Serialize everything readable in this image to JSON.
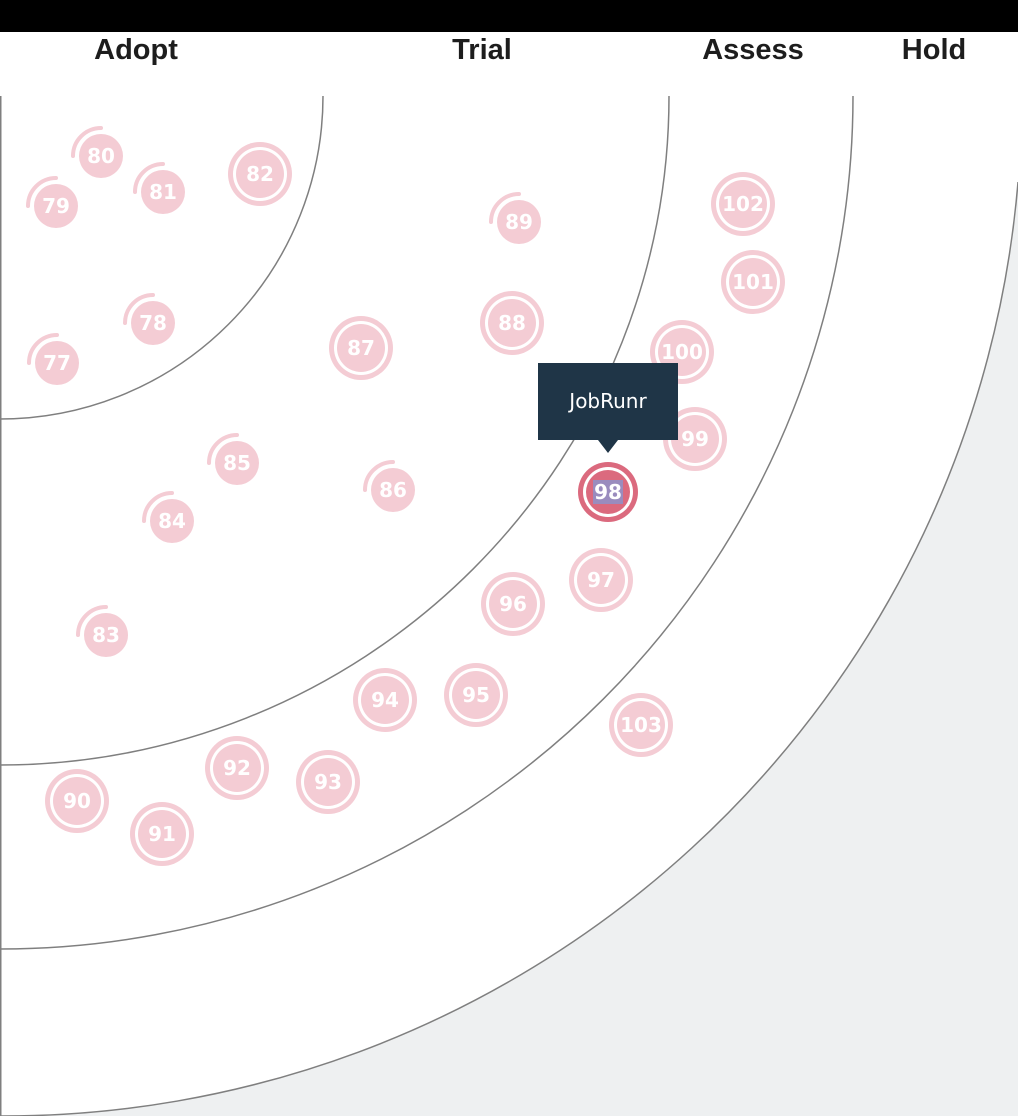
{
  "rings": [
    {
      "id": "adopt",
      "label": "Adopt"
    },
    {
      "id": "trial",
      "label": "Trial"
    },
    {
      "id": "assess",
      "label": "Assess"
    },
    {
      "id": "hold",
      "label": "Hold"
    }
  ],
  "tooltip": {
    "text": "JobRunr"
  },
  "colors": {
    "blip": "#f4ccd4",
    "blip_highlight": "#db6a7e",
    "blip_highlight_fill": "#9a8cbe",
    "tooltip_bg": "#1f3547",
    "ring_line": "#7f7f7f",
    "outside_bg": "#eef0f1"
  },
  "blips": [
    {
      "num": "77",
      "ring": "adopt",
      "style": "new"
    },
    {
      "num": "78",
      "ring": "adopt",
      "style": "new"
    },
    {
      "num": "79",
      "ring": "adopt",
      "style": "new"
    },
    {
      "num": "80",
      "ring": "adopt",
      "style": "new"
    },
    {
      "num": "81",
      "ring": "adopt",
      "style": "new"
    },
    {
      "num": "82",
      "ring": "adopt",
      "style": "unchanged"
    },
    {
      "num": "83",
      "ring": "trial",
      "style": "new"
    },
    {
      "num": "84",
      "ring": "trial",
      "style": "new"
    },
    {
      "num": "85",
      "ring": "trial",
      "style": "new"
    },
    {
      "num": "86",
      "ring": "trial",
      "style": "new"
    },
    {
      "num": "87",
      "ring": "trial",
      "style": "unchanged"
    },
    {
      "num": "88",
      "ring": "trial",
      "style": "unchanged"
    },
    {
      "num": "89",
      "ring": "trial",
      "style": "new"
    },
    {
      "num": "90",
      "ring": "assess",
      "style": "unchanged"
    },
    {
      "num": "91",
      "ring": "assess",
      "style": "unchanged"
    },
    {
      "num": "92",
      "ring": "assess",
      "style": "unchanged"
    },
    {
      "num": "93",
      "ring": "assess",
      "style": "unchanged"
    },
    {
      "num": "94",
      "ring": "assess",
      "style": "unchanged"
    },
    {
      "num": "95",
      "ring": "assess",
      "style": "unchanged"
    },
    {
      "num": "96",
      "ring": "assess",
      "style": "unchanged"
    },
    {
      "num": "97",
      "ring": "assess",
      "style": "unchanged"
    },
    {
      "num": "98",
      "ring": "assess",
      "style": "highlighted"
    },
    {
      "num": "99",
      "ring": "assess",
      "style": "unchanged"
    },
    {
      "num": "100",
      "ring": "assess",
      "style": "unchanged"
    },
    {
      "num": "101",
      "ring": "hold",
      "style": "unchanged"
    },
    {
      "num": "102",
      "ring": "hold",
      "style": "unchanged"
    },
    {
      "num": "103",
      "ring": "hold",
      "style": "unchanged"
    }
  ]
}
